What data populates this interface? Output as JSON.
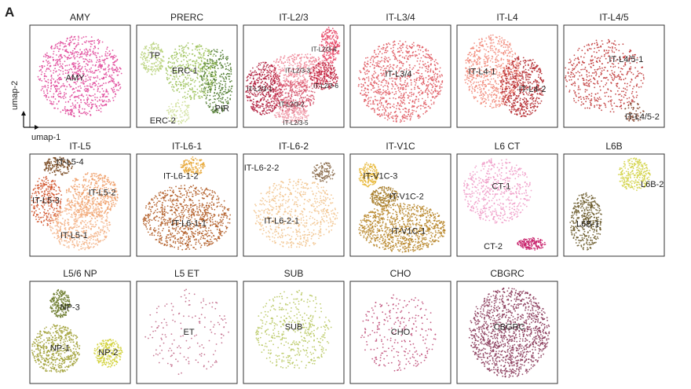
{
  "figure": {
    "panel_letter": "A",
    "axes": {
      "x_label": "umap-1",
      "y_label": "umap-2"
    }
  },
  "chart_data": [
    {
      "type": "scatter",
      "title": "AMY",
      "color": "#e0489a",
      "clusters": [
        {
          "label": "AMY",
          "color": "#e0489a"
        }
      ]
    },
    {
      "type": "scatter",
      "title": "PRERC",
      "color": "#7bab3c",
      "clusters": [
        {
          "label": "TP",
          "color": "#b8d27a"
        },
        {
          "label": "ERC-1",
          "color": "#9cc25a"
        },
        {
          "label": "PIR",
          "color": "#4e7a2e"
        },
        {
          "label": "ERC-2",
          "color": "#cfe09a"
        }
      ]
    },
    {
      "type": "scatter",
      "title": "IT-L2/3",
      "color": "#d9324e",
      "clusters": [
        {
          "label": "IT-L2/3-4",
          "color": "#e84b6a"
        },
        {
          "label": "IT-L2/3-3",
          "color": "#f08a9a"
        },
        {
          "label": "IT-L2/3-6",
          "color": "#c0233f"
        },
        {
          "label": "IT-L2/3-1",
          "color": "#b01d3c"
        },
        {
          "label": "IT-L2/3-2",
          "color": "#d6566e"
        },
        {
          "label": "IT-L2/3-5",
          "color": "#f1a0ad"
        }
      ]
    },
    {
      "type": "scatter",
      "title": "IT-L3/4",
      "color": "#e05a62",
      "clusters": [
        {
          "label": "IT-L3/4",
          "color": "#e05a62"
        }
      ]
    },
    {
      "type": "scatter",
      "title": "IT-L4",
      "color": "#e26a62",
      "clusters": [
        {
          "label": "IT-L4-1",
          "color": "#f28a7a"
        },
        {
          "label": "IT-L4-2",
          "color": "#b52a30"
        }
      ]
    },
    {
      "type": "scatter",
      "title": "IT-L4/5",
      "color": "#b33a3a",
      "clusters": [
        {
          "label": "IT-L4/5-1",
          "color": "#c13a3a"
        },
        {
          "label": "IT-L4/5-2",
          "color": "#8a4a32"
        }
      ]
    },
    {
      "type": "scatter",
      "title": "IT-L5",
      "color": "#ec8a56",
      "clusters": [
        {
          "label": "IT-L5-4",
          "color": "#7a4a22"
        },
        {
          "label": "IT-L5-3",
          "color": "#d2552e"
        },
        {
          "label": "IT-L5-2",
          "color": "#f0a06a"
        },
        {
          "label": "IT-L5-1",
          "color": "#f4b488"
        }
      ]
    },
    {
      "type": "scatter",
      "title": "IT-L6-1",
      "color": "#b05a22",
      "clusters": [
        {
          "label": "IT-L6-1-2",
          "color": "#e8a83a"
        },
        {
          "label": "IT-L6-1-1",
          "color": "#b05a22"
        }
      ]
    },
    {
      "type": "scatter",
      "title": "IT-L6-2",
      "color": "#f0c08a",
      "clusters": [
        {
          "label": "IT-L6-2-2",
          "color": "#8a6a4a"
        },
        {
          "label": "IT-L6-2-1",
          "color": "#f2c48e"
        }
      ]
    },
    {
      "type": "scatter",
      "title": "IT-V1C",
      "color": "#b8862a",
      "clusters": [
        {
          "label": "IT-V1C-3",
          "color": "#e8b83a"
        },
        {
          "label": "IT-V1C-2",
          "color": "#a57a26"
        },
        {
          "label": "IT-V1C-1",
          "color": "#b8862a"
        }
      ]
    },
    {
      "type": "scatter",
      "title": "L6 CT",
      "color": "#e896c0",
      "clusters": [
        {
          "label": "CT-1",
          "color": "#ef9cc8"
        },
        {
          "label": "CT-2",
          "color": "#c8206a"
        }
      ]
    },
    {
      "type": "scatter",
      "title": "L6B",
      "color": "#8a7a2a",
      "clusters": [
        {
          "label": "L6B-2",
          "color": "#d4d44a"
        },
        {
          "label": "L6B-1",
          "color": "#6a5a2a"
        }
      ]
    },
    {
      "type": "scatter",
      "title": "L5/6 NP",
      "color": "#9a9a30",
      "clusters": [
        {
          "label": "NP-3",
          "color": "#6a7a2a"
        },
        {
          "label": "NP-1",
          "color": "#a2a23a"
        },
        {
          "label": "NP-2",
          "color": "#d2d23a"
        }
      ]
    },
    {
      "type": "scatter",
      "title": "L5 ET",
      "color": "#c26a8a",
      "clusters": [
        {
          "label": "ET",
          "color": "#c26a8a"
        }
      ]
    },
    {
      "type": "scatter",
      "title": "SUB",
      "color": "#b8c860",
      "clusters": [
        {
          "label": "SUB",
          "color": "#b8c860"
        }
      ]
    },
    {
      "type": "scatter",
      "title": "CHO",
      "color": "#c0507a",
      "clusters": [
        {
          "label": "CHO",
          "color": "#c0507a"
        }
      ]
    },
    {
      "type": "scatter",
      "title": "CBGRC",
      "color": "#8a3a5a",
      "clusters": [
        {
          "label": "CBGRC",
          "color": "#8a3a5a"
        }
      ]
    }
  ]
}
